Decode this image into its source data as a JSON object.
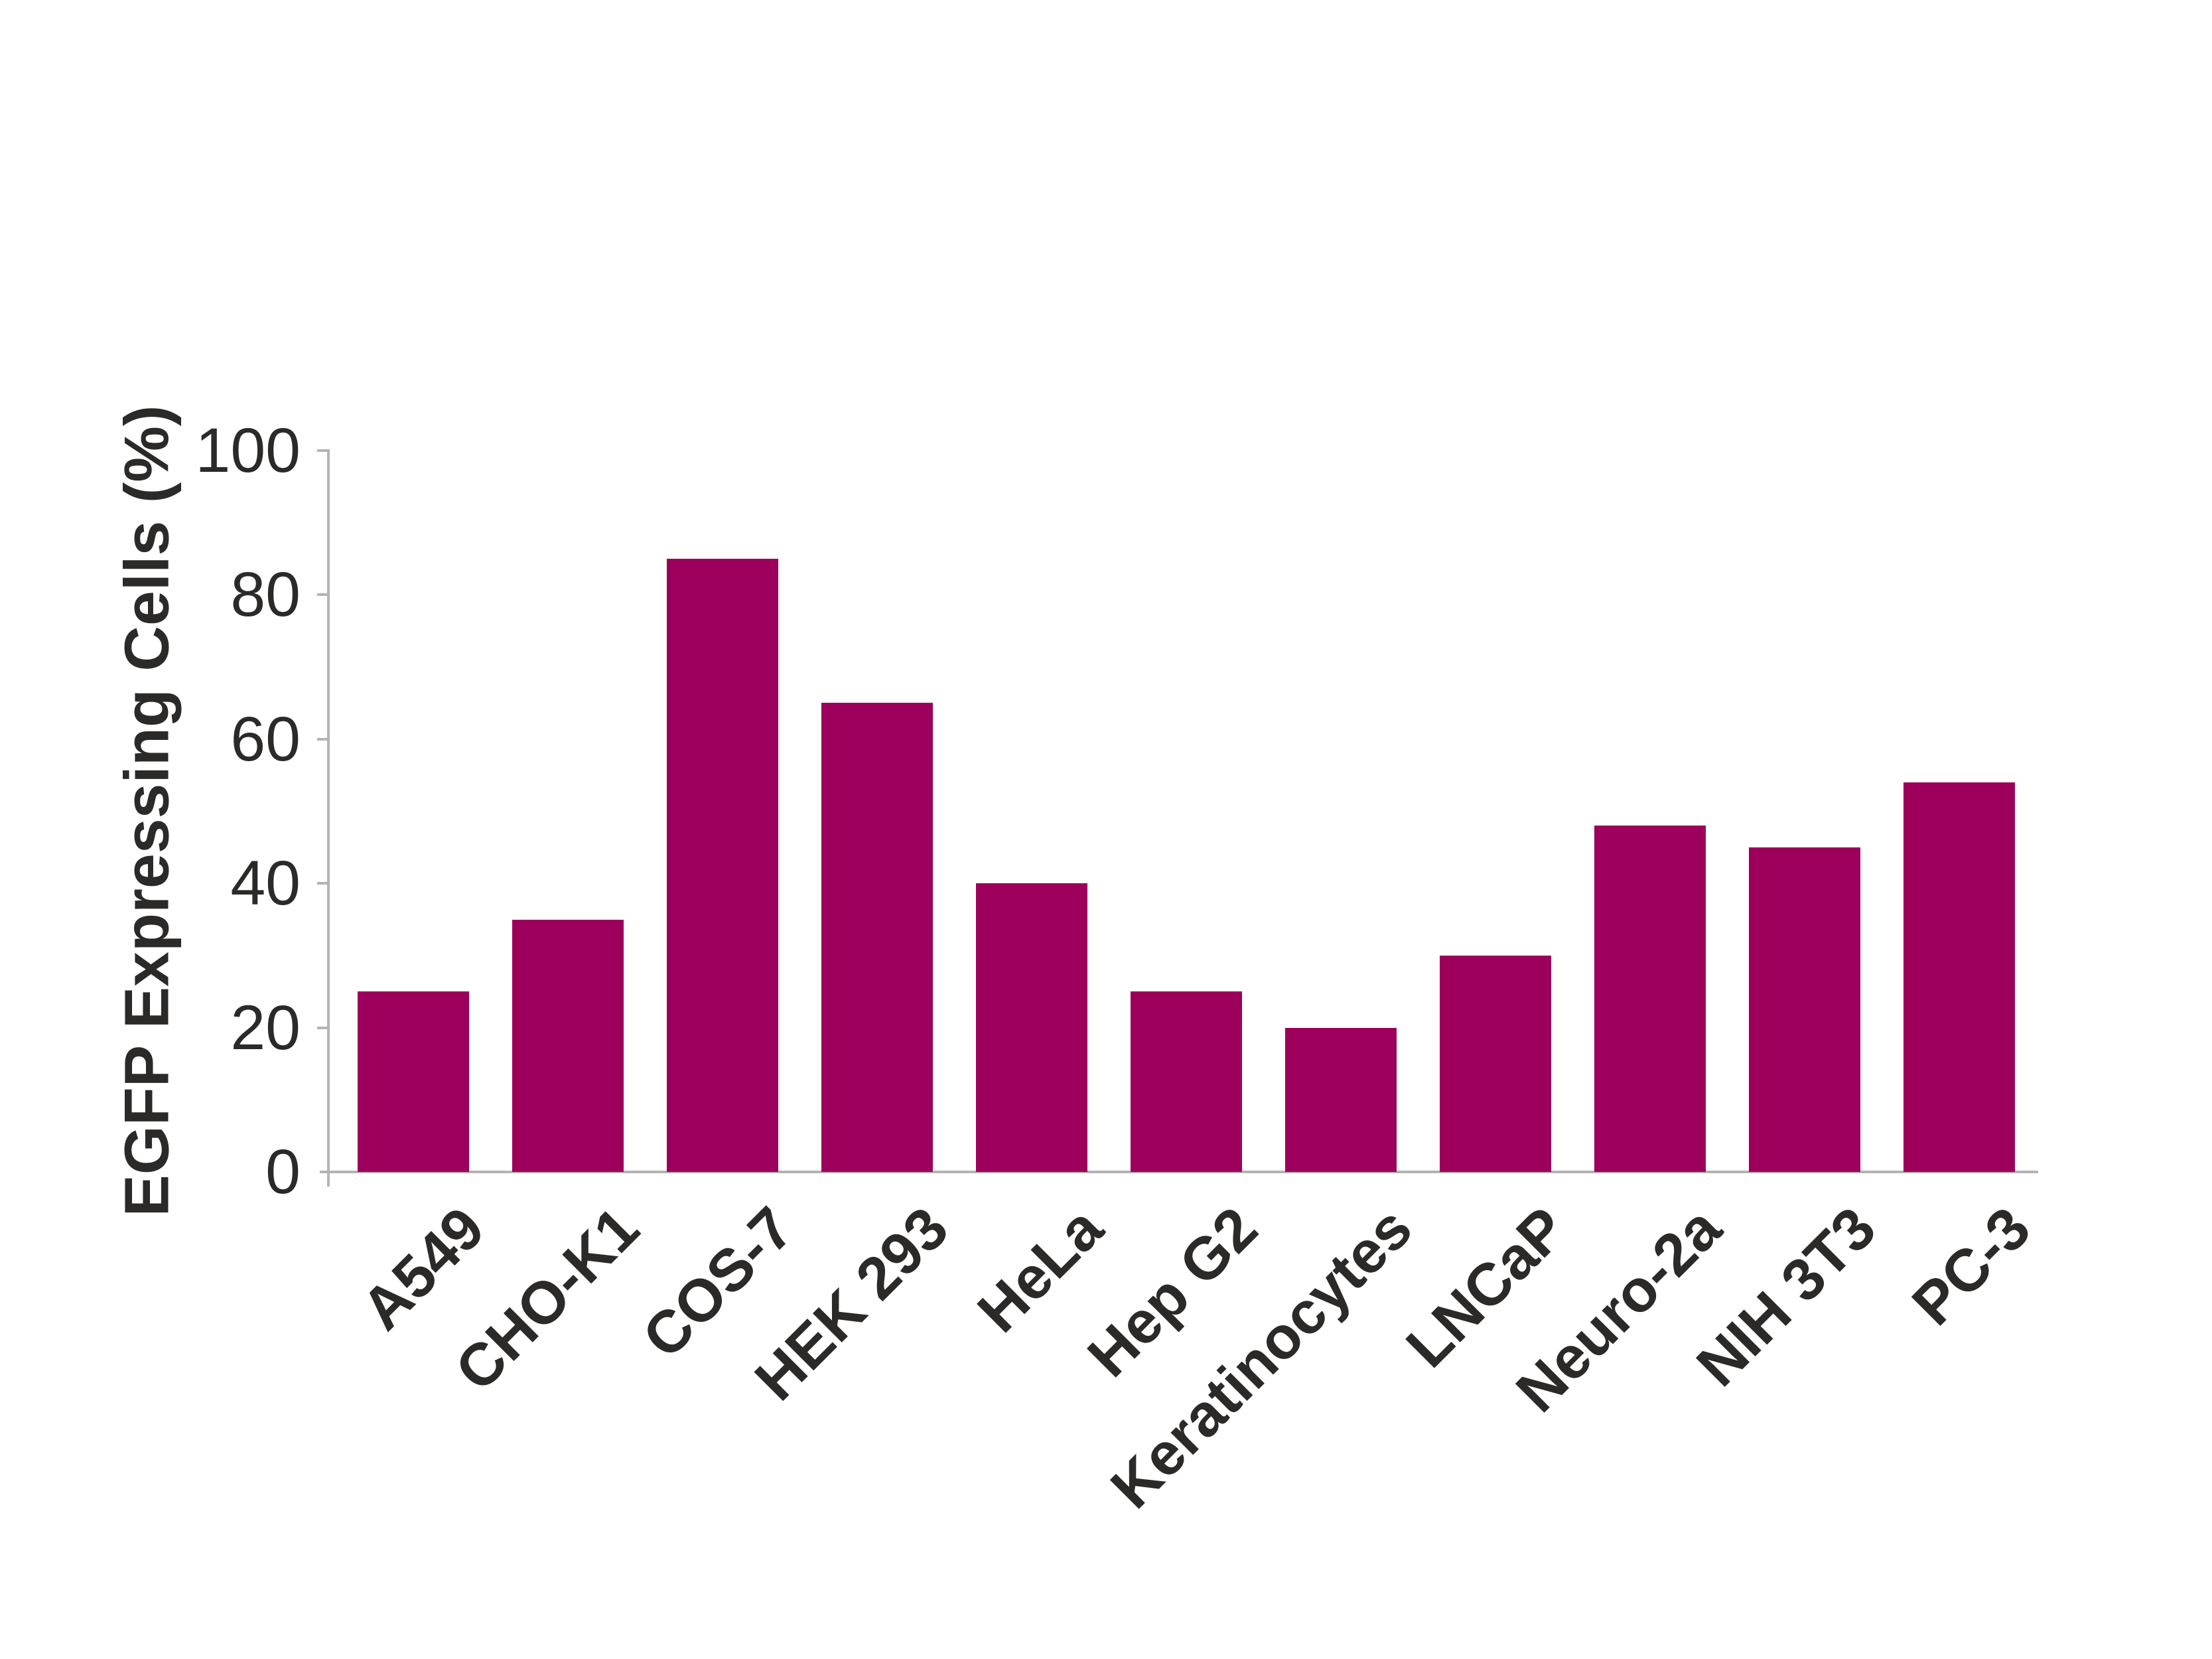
{
  "chart_data": {
    "type": "bar",
    "title": "",
    "categories": [
      "A549",
      "CHO-K1",
      "COS-7",
      "HEK 293",
      "HeLa",
      "Hep G2",
      "Keratinocytes",
      "LNCaP",
      "Neuro-2a",
      "NIH 3T3",
      "PC-3"
    ],
    "values": [
      25,
      35,
      85,
      65,
      40,
      25,
      20,
      30,
      48,
      45,
      54
    ],
    "xlabel": "",
    "ylabel": "EGFP Expressing Cells (%)",
    "ylim": [
      0,
      100
    ],
    "yticks": [
      0,
      20,
      40,
      60,
      80,
      100
    ],
    "grid": false,
    "legend": "none",
    "bar_color": "#9C005C",
    "axis_color": "#B3B3B3",
    "text_color": "#2B2A29",
    "background_color": "#FFFFFF"
  }
}
